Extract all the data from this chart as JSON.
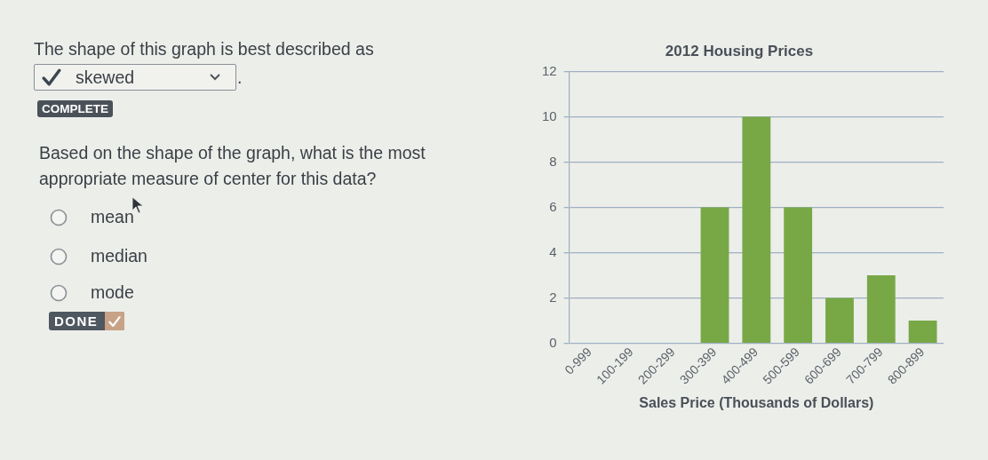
{
  "chart_data": [
    {
      "type": "other",
      "annotations": [
        "The shape of this graph is best described as",
        "skewed",
        ".",
        "COMPLETE",
        "Based on the shape of the graph, what is the most appropriate measure of center for this data?",
        "mean",
        "median",
        "mode",
        "DONE"
      ]
    },
    {
      "type": "bar",
      "title": "2012 Housing Prices",
      "xlabel": "Sales Price (Thousands of Dollars)",
      "categories": [
        "0-999",
        "100-199",
        "200-299",
        "300-399",
        "400-499",
        "500-599",
        "600-699",
        "700-799",
        "800-899"
      ],
      "values": [
        0,
        0,
        0,
        6,
        10,
        6,
        2,
        3,
        1
      ],
      "color": "#78a846",
      "ylim": [
        0,
        12
      ],
      "yticks": [
        0,
        2,
        4,
        6,
        8,
        10,
        12
      ],
      "grid": "y"
    }
  ]
}
